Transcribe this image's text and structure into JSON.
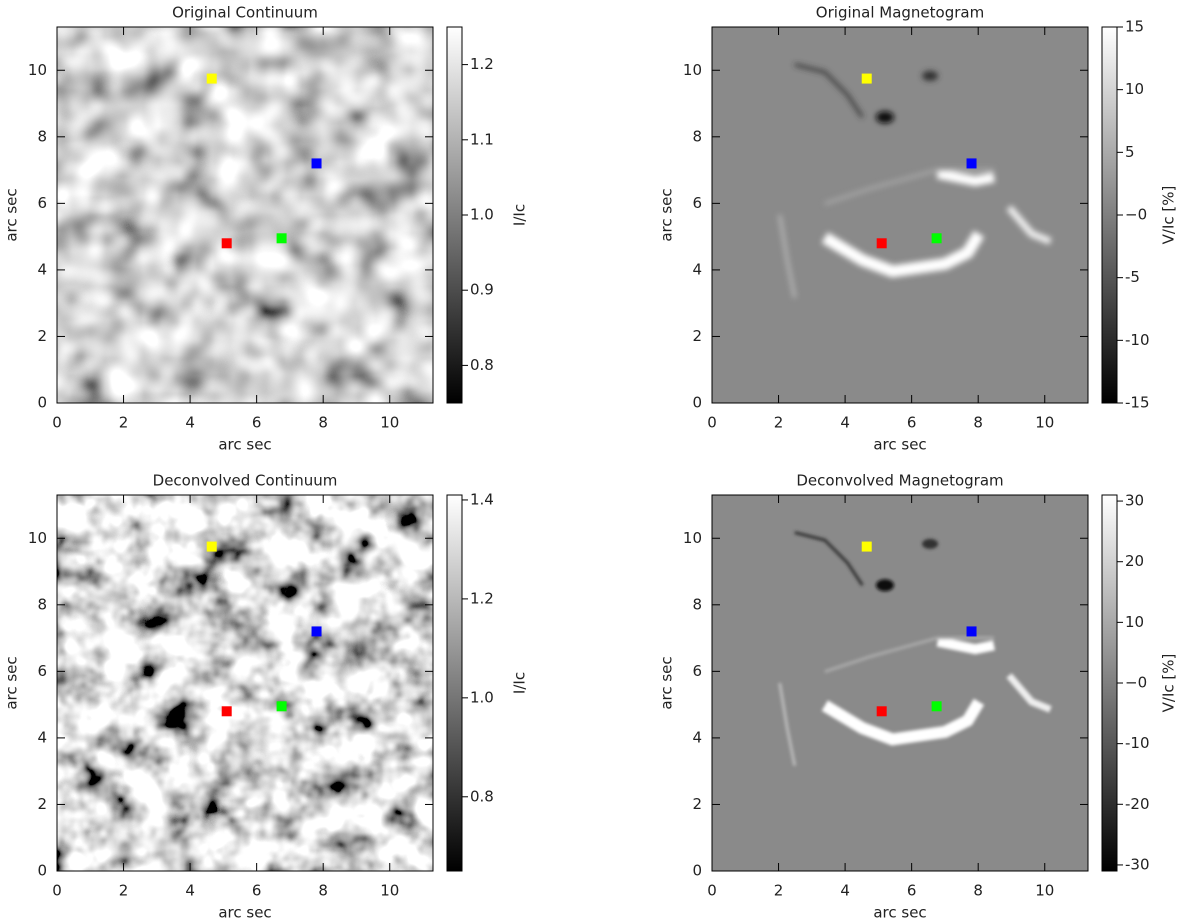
{
  "chart_data": [
    {
      "type": "image",
      "title": "Original Continuum",
      "xlabel": "arc sec",
      "ylabel": "arc sec",
      "xlim": [
        0,
        11.3
      ],
      "ylim": [
        0,
        11.3
      ],
      "xticks": [
        0,
        2,
        4,
        6,
        8,
        10
      ],
      "yticks": [
        0,
        2,
        4,
        6,
        8,
        10
      ],
      "colorbar": {
        "label": "I/Ic",
        "lim": [
          0.75,
          1.25
        ],
        "ticks": [
          0.8,
          0.9,
          {
            "value": 1,
            "label": "1.0"
          },
          1.1,
          1.2
        ]
      },
      "markers": [
        {
          "color": "#ffff00",
          "x": 4.65,
          "y": 9.75
        },
        {
          "color": "#0000ff",
          "x": 7.8,
          "y": 7.2
        },
        {
          "color": "#ff0000",
          "x": 5.1,
          "y": 4.8
        },
        {
          "color": "#00ff00",
          "x": 6.75,
          "y": 4.95
        }
      ]
    },
    {
      "type": "image",
      "title": "Original Magnetogram",
      "xlabel": "arc sec",
      "ylabel": "arc sec",
      "xlim": [
        0,
        11.3
      ],
      "ylim": [
        0,
        11.3
      ],
      "xticks": [
        0,
        2,
        4,
        6,
        8,
        10
      ],
      "yticks": [
        0,
        2,
        4,
        6,
        8,
        10
      ],
      "colorbar": {
        "label": "V/Ic [%]",
        "lim": [
          -15,
          15
        ],
        "ticks": [
          -15,
          -10,
          -5,
          {
            "value": 0,
            "label": "−0"
          },
          5,
          10,
          15
        ]
      },
      "markers": [
        {
          "color": "#ffff00",
          "x": 4.65,
          "y": 9.75
        },
        {
          "color": "#0000ff",
          "x": 7.8,
          "y": 7.2
        },
        {
          "color": "#ff0000",
          "x": 5.1,
          "y": 4.8
        },
        {
          "color": "#00ff00",
          "x": 6.75,
          "y": 4.95
        }
      ]
    },
    {
      "type": "image",
      "title": "Deconvolved Continuum",
      "xlabel": "arc sec",
      "ylabel": "arc sec",
      "xlim": [
        0,
        11.3
      ],
      "ylim": [
        0,
        11.3
      ],
      "xticks": [
        0,
        2,
        4,
        6,
        8,
        10
      ],
      "yticks": [
        0,
        2,
        4,
        6,
        8,
        10
      ],
      "colorbar": {
        "label": "I/Ic",
        "lim": [
          0.65,
          1.41
        ],
        "ticks": [
          0.8,
          {
            "value": 1,
            "label": "1.0"
          },
          1.2,
          1.4
        ]
      },
      "markers": [
        {
          "color": "#ffff00",
          "x": 4.65,
          "y": 9.75
        },
        {
          "color": "#0000ff",
          "x": 7.8,
          "y": 7.2
        },
        {
          "color": "#ff0000",
          "x": 5.1,
          "y": 4.8
        },
        {
          "color": "#00ff00",
          "x": 6.75,
          "y": 4.95
        }
      ]
    },
    {
      "type": "image",
      "title": "Deconvolved Magnetogram",
      "xlabel": "arc sec",
      "ylabel": "arc sec",
      "xlim": [
        0,
        11.3
      ],
      "ylim": [
        0,
        11.3
      ],
      "xticks": [
        0,
        2,
        4,
        6,
        8,
        10
      ],
      "yticks": [
        0,
        2,
        4,
        6,
        8,
        10
      ],
      "colorbar": {
        "label": "V/Ic [%]",
        "lim": [
          -31,
          31
        ],
        "ticks": [
          -30,
          -20,
          -10,
          {
            "value": 0,
            "label": "−0"
          },
          10,
          20,
          30
        ]
      },
      "markers": [
        {
          "color": "#ffff00",
          "x": 4.65,
          "y": 9.75
        },
        {
          "color": "#0000ff",
          "x": 7.8,
          "y": 7.2
        },
        {
          "color": "#ff0000",
          "x": 5.1,
          "y": 4.8
        },
        {
          "color": "#00ff00",
          "x": 6.75,
          "y": 4.95
        }
      ]
    }
  ]
}
